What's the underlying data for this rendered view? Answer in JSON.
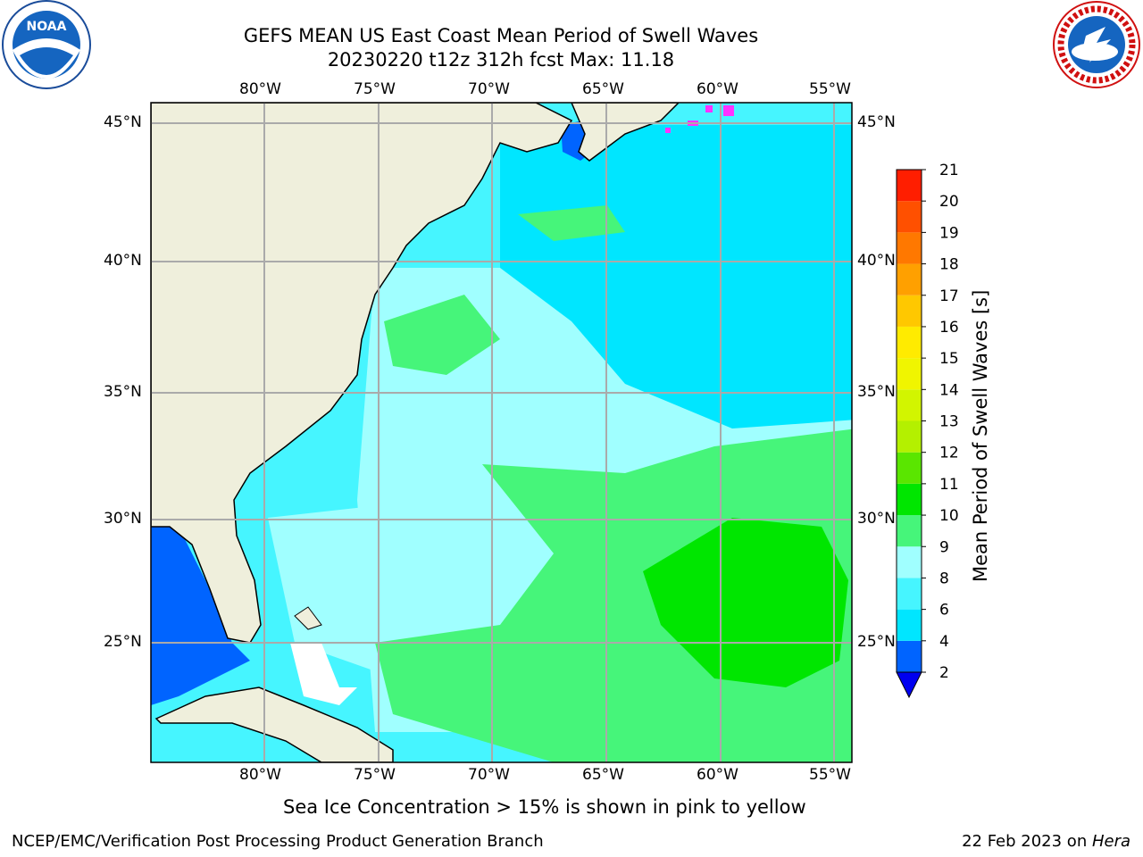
{
  "header": {
    "title_line1": "GEFS MEAN US East Coast Mean Period of Swell Waves",
    "title_line2": "20230220 t12z 312h fcst   Max: 11.18"
  },
  "logos": {
    "left": {
      "name": "noaa-logo",
      "text": "NOAA"
    },
    "right": {
      "name": "nws-logo",
      "text": "NATIONAL WEATHER SERVICE"
    }
  },
  "map": {
    "lon_labels": [
      "80°W",
      "75°W",
      "70°W",
      "65°W",
      "60°W",
      "55°W"
    ],
    "lat_labels": [
      "45°N",
      "40°N",
      "35°N",
      "30°N",
      "25°N"
    ],
    "extent": {
      "lon_min": -85,
      "lon_max": -54.2,
      "lat_min": 20.2,
      "lat_max": 45.8
    },
    "land_color": "#efefdc",
    "grid_color": "#aaaaaa"
  },
  "colorbar": {
    "label": "Mean Period of Swell Waves [s]",
    "ticks": [
      "2",
      "4",
      "6",
      "8",
      "9",
      "10",
      "11",
      "12",
      "13",
      "14",
      "15",
      "16",
      "17",
      "18",
      "19",
      "20",
      "21"
    ],
    "colors": [
      "#0064ff",
      "#00e6ff",
      "#46f5ff",
      "#a0ffff",
      "#46f57a",
      "#00e600",
      "#5ae600",
      "#b4f000",
      "#d2f500",
      "#f0f500",
      "#ffeb00",
      "#ffc800",
      "#ffa000",
      "#ff7800",
      "#ff5000",
      "#ff1e00"
    ],
    "under_color": "#0000f0"
  },
  "footer": {
    "note": "Sea Ice Concentration > 15% is shown in pink to yellow",
    "left": "NCEP/EMC/Verification Post Processing Product Generation Branch",
    "right_date": "22 Feb 2023 on ",
    "right_machine": "Hera"
  }
}
